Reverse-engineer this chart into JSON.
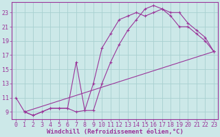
{
  "bg_color": "#cce8e8",
  "grid_color": "#a8d0d0",
  "line_color": "#993399",
  "xlabel": "Windchill (Refroidissement éolien,°C)",
  "xlim": [
    -0.5,
    23.5
  ],
  "ylim": [
    8.0,
    24.5
  ],
  "yticks": [
    9,
    11,
    13,
    15,
    17,
    19,
    21,
    23
  ],
  "xticks": [
    0,
    1,
    2,
    3,
    4,
    5,
    6,
    7,
    8,
    9,
    10,
    11,
    12,
    13,
    14,
    15,
    16,
    17,
    18,
    19,
    20,
    21,
    22,
    23
  ],
  "line1_x": [
    0,
    1,
    2,
    3,
    4,
    5,
    6,
    7,
    8,
    9,
    10,
    11,
    12,
    13,
    14,
    15,
    16,
    17,
    18,
    19,
    20,
    21,
    22,
    23
  ],
  "line1_y": [
    11,
    9.0,
    8.5,
    9.0,
    9.5,
    9.5,
    9.5,
    9.0,
    9.2,
    9.2,
    13.0,
    16.0,
    18.5,
    20.5,
    22.0,
    23.5,
    24.0,
    23.5,
    23.0,
    23.0,
    21.5,
    20.5,
    19.5,
    17.5
  ],
  "line2_x": [
    1,
    2,
    3,
    4,
    5,
    6,
    7,
    8,
    9,
    10,
    11,
    12,
    13,
    14,
    15,
    16,
    17,
    18,
    19,
    20,
    21,
    22,
    23
  ],
  "line2_y": [
    9.0,
    8.5,
    9.0,
    9.5,
    9.5,
    9.5,
    16.0,
    9.2,
    13.0,
    18.0,
    20.0,
    22.0,
    22.5,
    23.0,
    22.5,
    23.0,
    23.5,
    22.5,
    21.0,
    21.0,
    20.0,
    19.0,
    17.5
  ],
  "line3_x": [
    1,
    23
  ],
  "line3_y": [
    9.0,
    17.5
  ],
  "xlabel_fontsize": 6.5,
  "tick_fontsize": 6.0
}
